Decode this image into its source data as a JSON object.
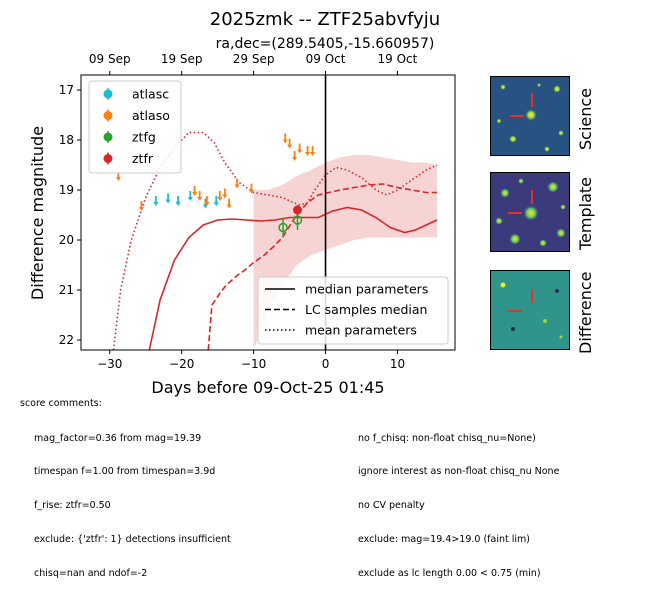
{
  "chart_data": {
    "type": "scatter",
    "title": "2025zmk -- ZTF25abvfyju",
    "subtitle": "ra,dec=(289.5405,-15.660957)",
    "xlabel": "Days before 09-Oct-25 01:45",
    "ylabel": "Difference magnitude",
    "xlim": [
      -34,
      18
    ],
    "ylim": [
      22.2,
      16.7
    ],
    "y_inverted": true,
    "x_ticks": [
      -30,
      -20,
      -10,
      0,
      10
    ],
    "y_ticks": [
      17,
      18,
      19,
      20,
      21,
      22
    ],
    "top_axis_ticks": [
      {
        "x": -30,
        "label": "09 Sep"
      },
      {
        "x": -20,
        "label": "19 Sep"
      },
      {
        "x": -10,
        "label": "29 Sep"
      },
      {
        "x": 0,
        "label": "09 Oct"
      },
      {
        "x": 10,
        "label": "19 Oct"
      }
    ],
    "vline_x": 0,
    "legend_top": {
      "placement": "top-left",
      "entries": [
        {
          "name": "atlasc",
          "color": "#17becf"
        },
        {
          "name": "atlaso",
          "color": "#ff7f0e"
        },
        {
          "name": "ztfg",
          "color": "#2ca02c"
        },
        {
          "name": "ztfr",
          "color": "#d62728"
        }
      ]
    },
    "legend_bottom": {
      "placement": "bottom-right",
      "entries": [
        {
          "name": "median parameters",
          "style": "solid"
        },
        {
          "name": "LC samples median",
          "style": "dashed"
        },
        {
          "name": "mean parameters",
          "style": "dotted"
        }
      ]
    },
    "series": [
      {
        "name": "atlasc",
        "color": "#17becf",
        "kind": "upper_limit",
        "points": [
          [
            -23.6,
            19.2
          ],
          [
            -21.9,
            19.15
          ],
          [
            -20.5,
            19.2
          ],
          [
            -18.8,
            19.1
          ],
          [
            -16.7,
            19.25
          ],
          [
            -15.2,
            19.2
          ]
        ]
      },
      {
        "name": "atlaso",
        "color": "#ff7f0e",
        "kind": "upper_limit",
        "points": [
          [
            -28.8,
            18.7
          ],
          [
            -25.6,
            19.3
          ],
          [
            -18.2,
            19.0
          ],
          [
            -17.5,
            19.1
          ],
          [
            -16.5,
            19.2
          ],
          [
            -14.7,
            19.1
          ],
          [
            -14.0,
            19.05
          ],
          [
            -13.4,
            19.25
          ],
          [
            -12.3,
            18.85
          ],
          [
            -10.3,
            18.95
          ],
          [
            -5.6,
            17.95
          ],
          [
            -5.0,
            18.05
          ],
          [
            -4.3,
            18.3
          ],
          [
            -3.6,
            18.15
          ],
          [
            -2.5,
            18.2
          ],
          [
            -1.8,
            18.2
          ]
        ]
      },
      {
        "name": "ztfg",
        "color": "#2ca02c",
        "kind": "detection",
        "points": [
          [
            -5.9,
            19.75,
            0.2
          ],
          [
            -3.9,
            19.6,
            0.2
          ]
        ]
      },
      {
        "name": "ztfr",
        "color": "#d62728",
        "kind": "detection",
        "points": [
          [
            -3.9,
            19.4,
            0.1
          ]
        ]
      }
    ],
    "models": {
      "color": "#d62728",
      "median": [
        [
          -24.5,
          22.2
        ],
        [
          -23.0,
          21.2
        ],
        [
          -21.0,
          20.4
        ],
        [
          -19.0,
          19.95
        ],
        [
          -17.0,
          19.7
        ],
        [
          -15.0,
          19.6
        ],
        [
          -13.0,
          19.58
        ],
        [
          -11.0,
          19.6
        ],
        [
          -9.0,
          19.62
        ],
        [
          -7.0,
          19.6
        ],
        [
          -5.0,
          19.55
        ],
        [
          -3.0,
          19.55
        ],
        [
          -1.0,
          19.55
        ],
        [
          1.0,
          19.42
        ],
        [
          3.0,
          19.35
        ],
        [
          5.0,
          19.4
        ],
        [
          7.0,
          19.55
        ],
        [
          9.0,
          19.75
        ],
        [
          11.0,
          19.85
        ],
        [
          12.5,
          19.8
        ],
        [
          14.0,
          19.7
        ],
        [
          15.5,
          19.6
        ]
      ],
      "lc_samples_median": [
        [
          -16.3,
          22.2
        ],
        [
          -15.8,
          21.3
        ],
        [
          -14.6,
          21.05
        ],
        [
          -13.8,
          20.9
        ],
        [
          -12.2,
          20.7
        ],
        [
          -11.2,
          20.6
        ],
        [
          -10.0,
          20.45
        ],
        [
          -8.5,
          20.3
        ],
        [
          -7.0,
          20.1
        ],
        [
          -6.0,
          19.95
        ],
        [
          -5.0,
          19.72
        ],
        [
          -4.0,
          19.5
        ],
        [
          -2.5,
          19.25
        ],
        [
          -1.0,
          19.1
        ],
        [
          0.5,
          19.05
        ],
        [
          2.0,
          19.0
        ],
        [
          4.0,
          18.95
        ],
        [
          6.0,
          18.9
        ],
        [
          8.0,
          18.88
        ],
        [
          10.0,
          18.95
        ],
        [
          12.0,
          19.0
        ],
        [
          14.0,
          19.05
        ],
        [
          15.5,
          19.05
        ]
      ],
      "mean": [
        [
          -29.5,
          22.2
        ],
        [
          -28.5,
          21.0
        ],
        [
          -27.0,
          20.0
        ],
        [
          -25.0,
          19.15
        ],
        [
          -23.0,
          18.55
        ],
        [
          -21.0,
          18.15
        ],
        [
          -19.0,
          17.85
        ],
        [
          -17.0,
          17.85
        ],
        [
          -15.5,
          18.05
        ],
        [
          -14.0,
          18.45
        ],
        [
          -12.0,
          18.85
        ],
        [
          -10.0,
          19.05
        ],
        [
          -8.0,
          19.1
        ],
        [
          -6.0,
          19.15
        ],
        [
          -4.5,
          19.25
        ],
        [
          -3.5,
          19.3
        ],
        [
          -2.5,
          19.25
        ],
        [
          -1.5,
          19.0
        ],
        [
          0.0,
          18.7
        ],
        [
          1.5,
          18.55
        ],
        [
          3.0,
          18.6
        ],
        [
          5.0,
          18.75
        ],
        [
          7.0,
          19.0
        ],
        [
          8.5,
          19.1
        ],
        [
          10.0,
          19.0
        ],
        [
          12.0,
          18.8
        ],
        [
          14.0,
          18.6
        ],
        [
          15.5,
          18.5
        ]
      ],
      "band_upper": [
        [
          -10.0,
          19.0
        ],
        [
          -8.0,
          19.0
        ],
        [
          -6.0,
          18.9
        ],
        [
          -4.0,
          18.72
        ],
        [
          -2.0,
          18.6
        ],
        [
          0.0,
          18.45
        ],
        [
          2.0,
          18.35
        ],
        [
          4.0,
          18.3
        ],
        [
          6.0,
          18.3
        ],
        [
          8.0,
          18.35
        ],
        [
          10.0,
          18.4
        ],
        [
          12.0,
          18.45
        ],
        [
          14.0,
          18.45
        ],
        [
          15.5,
          18.5
        ]
      ],
      "band_lower": [
        [
          -10.0,
          22.2
        ],
        [
          -8.0,
          21.4
        ],
        [
          -6.0,
          20.9
        ],
        [
          -4.0,
          20.5
        ],
        [
          -2.0,
          20.3
        ],
        [
          0.0,
          20.2
        ],
        [
          2.0,
          20.1
        ],
        [
          4.0,
          20.0
        ],
        [
          6.0,
          19.95
        ],
        [
          8.0,
          19.95
        ],
        [
          10.0,
          19.95
        ],
        [
          12.0,
          19.95
        ],
        [
          14.0,
          19.95
        ],
        [
          15.5,
          19.95
        ]
      ]
    }
  },
  "comments": {
    "header": "score comments:",
    "left": [
      "mag_factor=0.36 from mag=19.39",
      "timespan f=1.00 from timespan=3.9d",
      "f_rise: ztfr=0.50",
      "exclude: {'ztfr': 1} detections insufficient",
      "chisq=nan and ndof=-2"
    ],
    "right": [
      "no f_chisq: non-float chisq_nu=None)",
      "ignore interest as non-float chisq_nu None",
      "no CV penalty",
      "exclude: mag=19.4>19.0 (faint lim)",
      "exclude as lc length 0.00 < 0.75 (min)"
    ]
  },
  "cutouts": {
    "science_label": "Science",
    "template_label": "Template",
    "difference_label": "Difference",
    "marker_color": "#e8302a"
  }
}
